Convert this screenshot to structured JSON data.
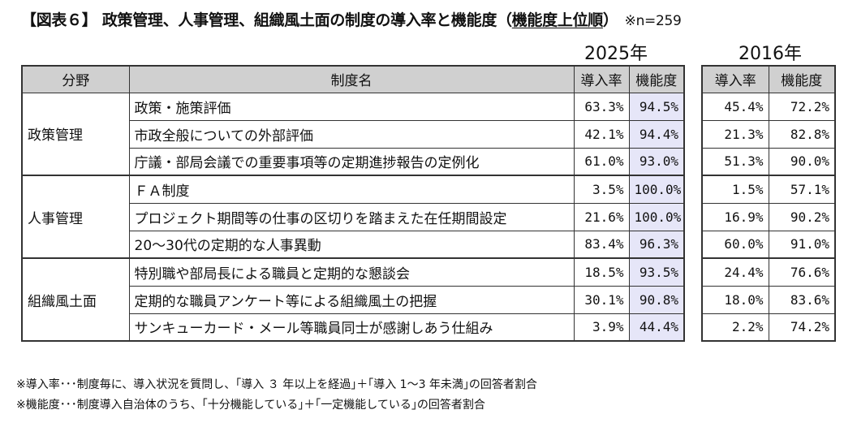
{
  "title": {
    "prefix": "【図表６】 政策管理、人事管理、組織風土面の制度の導入率と機能度（",
    "underlined": "機能度上位順",
    "suffix": "）",
    "sample": "※n=259"
  },
  "years": {
    "y2025": "2025年",
    "y2016": "2016年"
  },
  "headers": {
    "field": "分野",
    "system": "制度名",
    "adoption": "導入率",
    "function": "機能度",
    "adoption_2016": "導入率",
    "function_2016": "機能度"
  },
  "groups": [
    {
      "name": "政策管理",
      "rows": [
        {
          "system": "政策・施策評価",
          "adoption_2025": "63.3%",
          "function_2025": "94.5%",
          "adoption_2016": "45.4%",
          "function_2016": "72.2%"
        },
        {
          "system": "市政全般についての外部評価",
          "adoption_2025": "42.1%",
          "function_2025": "94.4%",
          "adoption_2016": "21.3%",
          "function_2016": "82.8%"
        },
        {
          "system": "庁議・部局会議での重要事項等の定期進捗報告の定例化",
          "adoption_2025": "61.0%",
          "function_2025": "93.0%",
          "adoption_2016": "51.3%",
          "function_2016": "90.0%"
        }
      ]
    },
    {
      "name": "人事管理",
      "rows": [
        {
          "system": "ＦＡ制度",
          "adoption_2025": "3.5%",
          "function_2025": "100.0%",
          "adoption_2016": "1.5%",
          "function_2016": "57.1%"
        },
        {
          "system": "プロジェクト期間等の仕事の区切りを踏まえた在任期間設定",
          "adoption_2025": "21.6%",
          "function_2025": "100.0%",
          "adoption_2016": "16.9%",
          "function_2016": "90.2%"
        },
        {
          "system": "20～30代の定期的な人事異動",
          "adoption_2025": "83.4%",
          "function_2025": "96.3%",
          "adoption_2016": "60.0%",
          "function_2016": "91.0%"
        }
      ]
    },
    {
      "name": "組織風土面",
      "rows": [
        {
          "system": "特別職や部局長による職員と定期的な懇談会",
          "adoption_2025": "18.5%",
          "function_2025": "93.5%",
          "adoption_2016": "24.4%",
          "function_2016": "76.6%"
        },
        {
          "system": "定期的な職員アンケート等による組織風土の把握",
          "adoption_2025": "30.1%",
          "function_2025": "90.8%",
          "adoption_2016": "18.0%",
          "function_2016": "83.6%"
        },
        {
          "system": "サンキューカード・メール等職員同士が感謝しあう仕組み",
          "adoption_2025": "3.9%",
          "function_2025": "44.4%",
          "adoption_2016": "2.2%",
          "function_2016": "74.2%"
        }
      ]
    }
  ],
  "notes": [
    "※導入率･･･制度毎に、導入状況を質問し、｢導入 ３ 年以上を経過｣＋｢導入 1～3 年未満｣の回答者割合",
    "※機能度･･･制度導入自治体のうち、｢十分機能している｣＋｢一定機能している｣の回答者割合"
  ]
}
